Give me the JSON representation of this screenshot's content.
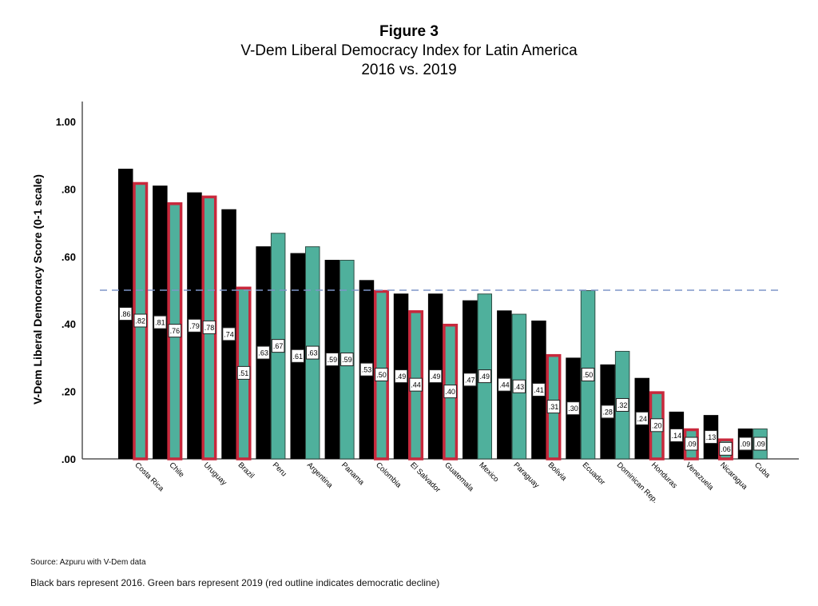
{
  "titles": {
    "figure": "Figure 3",
    "title": "V-Dem Liberal Democracy Index for Latin America",
    "subtitle": "2016 vs. 2019"
  },
  "notes": {
    "source": "Source: Azpuru with V-Dem data",
    "legend_text": "Black bars represent 2016. Green bars represent 2019  (red outline indicates democratic decline)"
  },
  "colors": {
    "bar_2016": "#000000",
    "bar_2019": "#4fb09c",
    "decline_outline": "#c8283c",
    "reference_line": "#7f96c8"
  },
  "chart_data": {
    "type": "bar",
    "title": "V-Dem Liberal Democracy Index for Latin America 2016 vs. 2019",
    "xlabel": "",
    "ylabel": "V-Dem Liberal Democracy Score (0-1 scale)",
    "ylim": [
      0,
      1
    ],
    "yticks": [
      ".00",
      ".20",
      ".40",
      ".60",
      ".80",
      "1.00"
    ],
    "ytick_values": [
      0,
      0.2,
      0.4,
      0.6,
      0.8,
      1.0
    ],
    "reference_line": 0.5,
    "grid": false,
    "categories": [
      "Costa Rica",
      "Chile",
      "Uruguay",
      "Brazil",
      "Peru",
      "Argentina",
      "Panama",
      "Colombia",
      "El Salvador",
      "Guatemala",
      "Mexico",
      "Paraguay",
      "Bolivia",
      "Ecuador",
      "Dominican Rep.",
      "Honduras",
      "Venezuela",
      "Nicaragua",
      "Cuba"
    ],
    "series": [
      {
        "name": "2016",
        "values": [
          0.86,
          0.81,
          0.79,
          0.74,
          0.63,
          0.61,
          0.59,
          0.53,
          0.49,
          0.49,
          0.47,
          0.44,
          0.41,
          0.3,
          0.28,
          0.24,
          0.14,
          0.13,
          0.09
        ],
        "labels": [
          ".86",
          ".81",
          ".79",
          ".74",
          ".63",
          ".61",
          ".59",
          ".53",
          ".49",
          ".49",
          ".47",
          ".44",
          ".41",
          ".30",
          ".28",
          ".24",
          ".14",
          ".13",
          ".09"
        ]
      },
      {
        "name": "2019",
        "values": [
          0.82,
          0.76,
          0.78,
          0.51,
          0.67,
          0.63,
          0.59,
          0.5,
          0.44,
          0.4,
          0.49,
          0.43,
          0.31,
          0.5,
          0.32,
          0.2,
          0.09,
          0.06,
          0.09
        ],
        "labels": [
          ".82",
          ".76",
          ".78",
          ".51",
          ".67",
          ".63",
          ".59",
          ".50",
          ".44",
          ".40",
          ".49",
          ".43",
          ".31",
          ".50",
          ".32",
          ".20",
          ".09",
          ".06",
          ".09"
        ]
      }
    ],
    "decline": [
      true,
      true,
      true,
      true,
      false,
      false,
      false,
      true,
      true,
      true,
      false,
      false,
      true,
      false,
      false,
      true,
      true,
      true,
      false
    ]
  }
}
